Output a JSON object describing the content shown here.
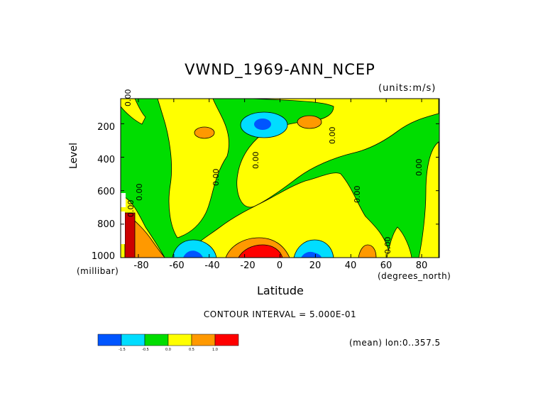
{
  "title": "VWND_1969-ANN_NCEP",
  "units_label": "(units:m/s)",
  "ylabel": "Level",
  "xlabel": "Latitude",
  "y_units": "(millibar)",
  "x_units": "(degrees_north)",
  "contour_interval": "CONTOUR INTERVAL = 5.000E-01",
  "mean_label": "(mean) lon:0..357.5",
  "chart_data": {
    "type": "heatmap",
    "title": "VWND_1969-ANN_NCEP",
    "xlabel": "Latitude",
    "ylabel": "Level",
    "x_units": "degrees_north",
    "y_units": "millibar",
    "value_units": "m/s",
    "xlim": [
      -90,
      90
    ],
    "ylim": [
      1000,
      50
    ],
    "y_scale": "linear",
    "x_ticks": [
      "-80",
      "-60",
      "-40",
      "-20",
      "0",
      "20",
      "40",
      "60",
      "80"
    ],
    "y_ticks": [
      "200",
      "400",
      "600",
      "800",
      "1000"
    ],
    "contour_interval": 0.5,
    "contour_labels": [
      "0.00",
      "0.00",
      "0.00",
      "0.00",
      "0.00",
      "0.00",
      "0.00",
      "0.00",
      "0.00"
    ],
    "colorbar": {
      "boundaries": [
        "-1.5",
        "-0.5",
        "0.0",
        "0.5",
        "1.0"
      ],
      "colors": [
        "#0055ff",
        "#00ddff",
        "#00dd00",
        "#ffff00",
        "#ff9900",
        "#ff0000"
      ]
    },
    "regions": [
      {
        "level": "positive",
        "description": "yellow"
      },
      {
        "level": "negative",
        "description": "green"
      }
    ]
  }
}
